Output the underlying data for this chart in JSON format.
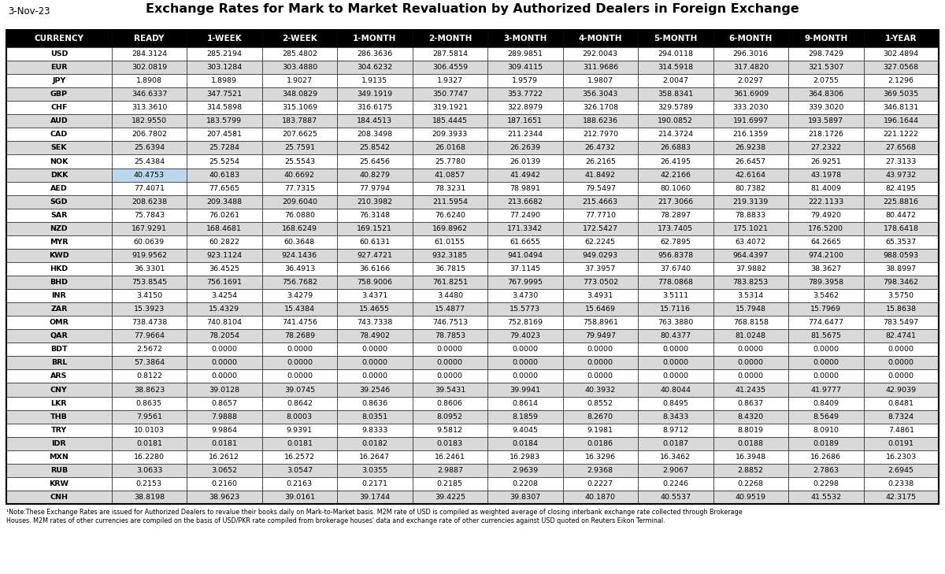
{
  "title": "Exchange Rates for Mark to Market Revaluation by Authorized Dealers in Foreign Exchange",
  "date": "3-Nov-23",
  "columns": [
    "CURRENCY",
    "READY",
    "1-WEEK",
    "2-WEEK",
    "1-MONTH",
    "2-MONTH",
    "3-MONTH",
    "4-MONTH",
    "5-MONTH",
    "6-MONTH",
    "9-MONTH",
    "1-YEAR"
  ],
  "rows": [
    [
      "USD",
      "284.3124",
      "285.2194",
      "285.4802",
      "286.3636",
      "287.5814",
      "289.9851",
      "292.0043",
      "294.0118",
      "296.3016",
      "298.7429",
      "302.4894"
    ],
    [
      "EUR",
      "302.0819",
      "303.1284",
      "303.4880",
      "304.6232",
      "306.4559",
      "309.4115",
      "311.9686",
      "314.5918",
      "317.4820",
      "321.5307",
      "327.0568"
    ],
    [
      "JPY",
      "1.8908",
      "1.8989",
      "1.9027",
      "1.9135",
      "1.9327",
      "1.9579",
      "1.9807",
      "2.0047",
      "2.0297",
      "2.0755",
      "2.1296"
    ],
    [
      "GBP",
      "346.6337",
      "347.7521",
      "348.0829",
      "349.1919",
      "350.7747",
      "353.7722",
      "356.3043",
      "358.8341",
      "361.6909",
      "364.8306",
      "369.5035"
    ],
    [
      "CHF",
      "313.3610",
      "314.5898",
      "315.1069",
      "316.6175",
      "319.1921",
      "322.8979",
      "326.1708",
      "329.5789",
      "333.2030",
      "339.3020",
      "346.8131"
    ],
    [
      "AUD",
      "182.9550",
      "183.5799",
      "183.7887",
      "184.4513",
      "185.4445",
      "187.1651",
      "188.6236",
      "190.0852",
      "191.6997",
      "193.5897",
      "196.1644"
    ],
    [
      "CAD",
      "206.7802",
      "207.4581",
      "207.6625",
      "208.3498",
      "209.3933",
      "211.2344",
      "212.7970",
      "214.3724",
      "216.1359",
      "218.1726",
      "221.1222"
    ],
    [
      "SEK",
      "25.6394",
      "25.7284",
      "25.7591",
      "25.8542",
      "26.0168",
      "26.2639",
      "26.4732",
      "26.6883",
      "26.9238",
      "27.2322",
      "27.6568"
    ],
    [
      "NOK",
      "25.4384",
      "25.5254",
      "25.5543",
      "25.6456",
      "25.7780",
      "26.0139",
      "26.2165",
      "26.4195",
      "26.6457",
      "26.9251",
      "27.3133"
    ],
    [
      "DKK",
      "40.4753",
      "40.6183",
      "40.6692",
      "40.8279",
      "41.0857",
      "41.4942",
      "41.8492",
      "42.2166",
      "42.6164",
      "43.1978",
      "43.9732"
    ],
    [
      "AED",
      "77.4071",
      "77.6565",
      "77.7315",
      "77.9794",
      "78.3231",
      "78.9891",
      "79.5497",
      "80.1060",
      "80.7382",
      "81.4009",
      "82.4195"
    ],
    [
      "SGD",
      "208.6238",
      "209.3488",
      "209.6040",
      "210.3982",
      "211.5954",
      "213.6682",
      "215.4663",
      "217.3066",
      "219.3139",
      "222.1133",
      "225.8816"
    ],
    [
      "SAR",
      "75.7843",
      "76.0261",
      "76.0880",
      "76.3148",
      "76.6240",
      "77.2490",
      "77.7710",
      "78.2897",
      "78.8833",
      "79.4920",
      "80.4472"
    ],
    [
      "NZD",
      "167.9291",
      "168.4681",
      "168.6249",
      "169.1521",
      "169.8962",
      "171.3342",
      "172.5427",
      "173.7405",
      "175.1021",
      "176.5200",
      "178.6418"
    ],
    [
      "MYR",
      "60.0639",
      "60.2822",
      "60.3648",
      "60.6131",
      "61.0155",
      "61.6655",
      "62.2245",
      "62.7895",
      "63.4072",
      "64.2665",
      "65.3537"
    ],
    [
      "KWD",
      "919.9562",
      "923.1124",
      "924.1436",
      "927.4721",
      "932.3185",
      "941.0494",
      "949.0293",
      "956.8378",
      "964.4397",
      "974.2100",
      "988.0593"
    ],
    [
      "HKD",
      "36.3301",
      "36.4525",
      "36.4913",
      "36.6166",
      "36.7815",
      "37.1145",
      "37.3957",
      "37.6740",
      "37.9882",
      "38.3627",
      "38.8997"
    ],
    [
      "BHD",
      "753.8545",
      "756.1691",
      "756.7682",
      "758.9006",
      "761.8251",
      "767.9995",
      "773.0502",
      "778.0868",
      "783.8253",
      "789.3958",
      "798.3462"
    ],
    [
      "INR",
      "3.4150",
      "3.4254",
      "3.4279",
      "3.4371",
      "3.4480",
      "3.4730",
      "3.4931",
      "3.5111",
      "3.5314",
      "3.5462",
      "3.5750"
    ],
    [
      "ZAR",
      "15.3923",
      "15.4329",
      "15.4384",
      "15.4655",
      "15.4877",
      "15.5773",
      "15.6469",
      "15.7116",
      "15.7948",
      "15.7969",
      "15.8638"
    ],
    [
      "OMR",
      "738.4738",
      "740.8104",
      "741.4756",
      "743.7338",
      "746.7513",
      "752.8169",
      "758.8961",
      "763.3880",
      "768.8158",
      "774.6477",
      "783.5497"
    ],
    [
      "QAR",
      "77.9664",
      "78.2054",
      "78.2689",
      "78.4902",
      "78.7853",
      "79.4023",
      "79.9497",
      "80.4377",
      "81.0248",
      "81.5675",
      "82.4741"
    ],
    [
      "BDT",
      "2.5672",
      "0.0000",
      "0.0000",
      "0.0000",
      "0.0000",
      "0.0000",
      "0.0000",
      "0.0000",
      "0.0000",
      "0.0000",
      "0.0000"
    ],
    [
      "BRL",
      "57.3864",
      "0.0000",
      "0.0000",
      "0.0000",
      "0.0000",
      "0.0000",
      "0.0000",
      "0.0000",
      "0.0000",
      "0.0000",
      "0.0000"
    ],
    [
      "ARS",
      "0.8122",
      "0.0000",
      "0.0000",
      "0.0000",
      "0.0000",
      "0.0000",
      "0.0000",
      "0.0000",
      "0.0000",
      "0.0000",
      "0.0000"
    ],
    [
      "CNY",
      "38.8623",
      "39.0128",
      "39.0745",
      "39.2546",
      "39.5431",
      "39.9941",
      "40.3932",
      "40.8044",
      "41.2435",
      "41.9777",
      "42.9039"
    ],
    [
      "LKR",
      "0.8635",
      "0.8657",
      "0.8642",
      "0.8636",
      "0.8606",
      "0.8614",
      "0.8552",
      "0.8495",
      "0.8637",
      "0.8409",
      "0.8481"
    ],
    [
      "THB",
      "7.9561",
      "7.9888",
      "8.0003",
      "8.0351",
      "8.0952",
      "8.1859",
      "8.2670",
      "8.3433",
      "8.4320",
      "8.5649",
      "8.7324"
    ],
    [
      "TRY",
      "10.0103",
      "9.9864",
      "9.9391",
      "9.8333",
      "9.5812",
      "9.4045",
      "9.1981",
      "8.9712",
      "8.8019",
      "8.0910",
      "7.4861"
    ],
    [
      "IDR",
      "0.0181",
      "0.0181",
      "0.0181",
      "0.0182",
      "0.0183",
      "0.0184",
      "0.0186",
      "0.0187",
      "0.0188",
      "0.0189",
      "0.0191"
    ],
    [
      "MXN",
      "16.2280",
      "16.2612",
      "16.2572",
      "16.2647",
      "16.2461",
      "16.2983",
      "16.3296",
      "16.3462",
      "16.3948",
      "16.2686",
      "16.2303"
    ],
    [
      "RUB",
      "3.0633",
      "3.0652",
      "3.0547",
      "3.0355",
      "2.9887",
      "2.9639",
      "2.9368",
      "2.9067",
      "2.8852",
      "2.7863",
      "2.6945"
    ],
    [
      "KRW",
      "0.2153",
      "0.2160",
      "0.2163",
      "0.2171",
      "0.2185",
      "0.2208",
      "0.2227",
      "0.2246",
      "0.2268",
      "0.2298",
      "0.2338"
    ],
    [
      "CNH",
      "38.8198",
      "38.9623",
      "39.0161",
      "39.1744",
      "39.4225",
      "39.8307",
      "40.1870",
      "40.5537",
      "40.9519",
      "41.5532",
      "42.3175"
    ]
  ],
  "footnote_line1": "¹Note:These Exchange Rates are issued for Authorized Dealers to revalue their books daily on Mark-to-Market basis. M2M rate of USD is compiled as weighted average of closing interbank exchange rate collected through Brokerage",
  "footnote_line2": "Houses. M2M rates of other currencies are compiled on the basis of USD/PKR rate compiled from brokerage houses' data and exchange rate of other currencies against USD quoted on Reuters Eikon Terminal.",
  "header_bg": "#000000",
  "header_fg": "#ffffff",
  "alt_row_bg": "#d9d9d9",
  "normal_row_bg": "#ffffff",
  "dkk_highlight_cell_bg": "#bdd7ee",
  "col_widths_raw": [
    1.4,
    1.0,
    1.0,
    1.0,
    1.0,
    1.0,
    1.0,
    1.0,
    1.0,
    1.0,
    1.0,
    1.0
  ]
}
